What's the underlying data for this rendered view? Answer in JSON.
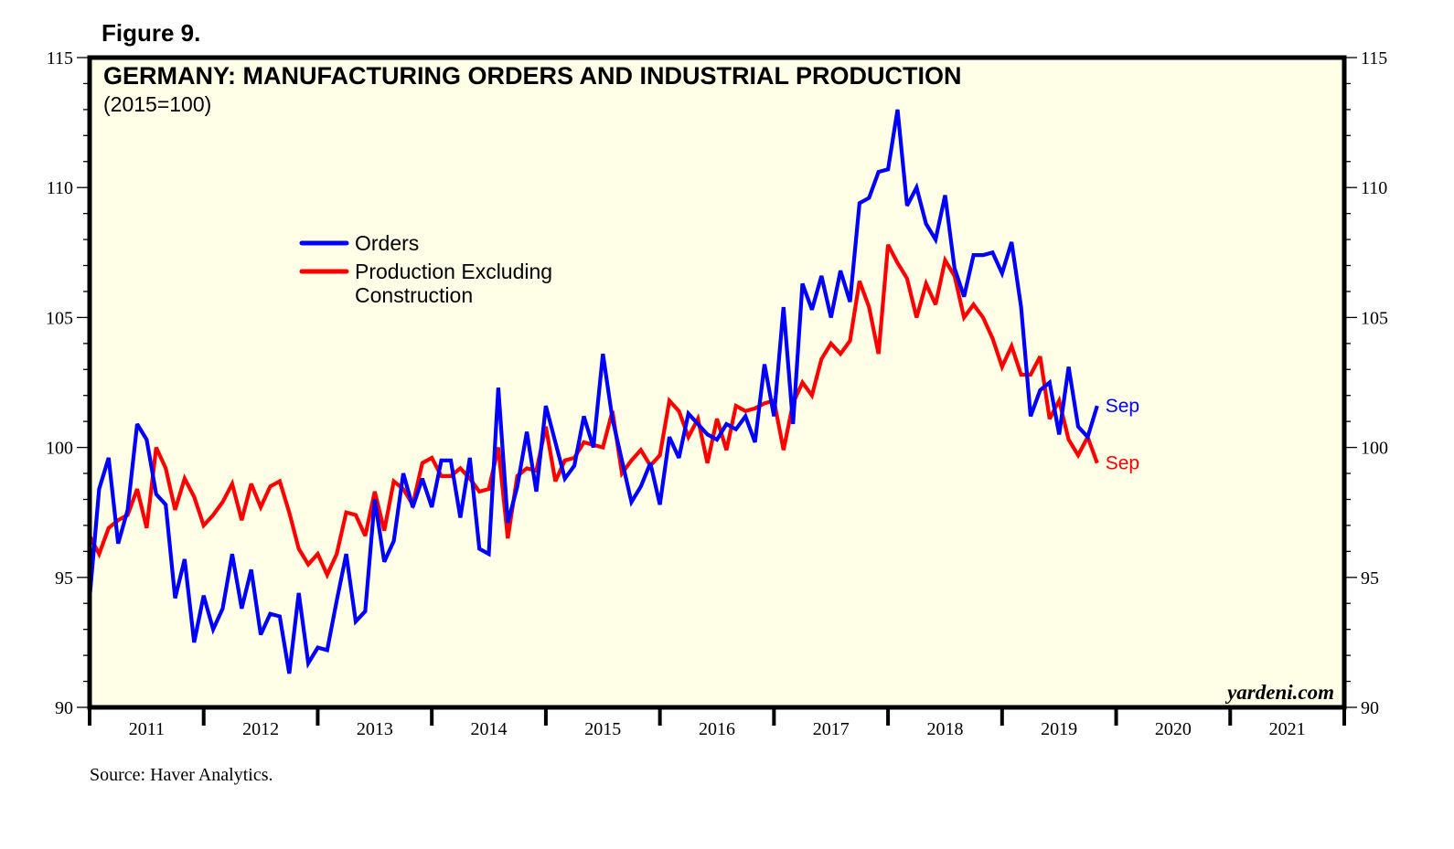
{
  "figure_label": "Figure 9.",
  "source": "Source: Haver Analytics.",
  "watermark": "yardeni.com",
  "colors": {
    "plot_background": "#FFFEE6",
    "frame": "#000000",
    "orders": "#0000FF",
    "production": "#FF0000"
  },
  "chart_data": {
    "type": "line",
    "title": "GERMANY: MANUFACTURING ORDERS AND INDUSTRIAL PRODUCTION",
    "subtitle": "(2015=100)",
    "xlabel": "",
    "ylabel": "",
    "ylim": [
      90,
      115
    ],
    "yticks": [
      90,
      95,
      100,
      105,
      110,
      115
    ],
    "ytick_labels": [
      "90",
      "95",
      "100",
      "105",
      "110",
      "115"
    ],
    "y_minor_step": 1,
    "xlim": [
      "2011-01",
      "2021-12"
    ],
    "xtick_labels": [
      "2011",
      "2012",
      "2013",
      "2014",
      "2015",
      "2016",
      "2017",
      "2018",
      "2019",
      "2020",
      "2021"
    ],
    "grid": false,
    "legend": {
      "placement": "upper-left-center",
      "entries": [
        "Orders",
        "Production Excluding Construction"
      ]
    },
    "x_start": "2011-01",
    "x_frequency": "monthly",
    "series": [
      {
        "name": "Orders",
        "end_label": "Sep",
        "values": [
          94.2,
          98.4,
          99.6,
          96.3,
          97.6,
          100.9,
          100.3,
          98.2,
          97.8,
          94.2,
          95.7,
          92.5,
          94.3,
          93.0,
          93.8,
          95.9,
          93.8,
          95.3,
          92.8,
          93.6,
          93.5,
          91.3,
          94.4,
          91.7,
          92.3,
          92.2,
          94.1,
          95.9,
          93.3,
          93.7,
          98.0,
          95.6,
          96.4,
          99.0,
          97.7,
          98.8,
          97.7,
          99.5,
          99.5,
          97.3,
          99.6,
          96.1,
          95.9,
          102.3,
          97.1,
          98.5,
          100.6,
          98.3,
          101.6,
          100.2,
          98.8,
          99.3,
          101.2,
          100.0,
          103.6,
          101.1,
          99.5,
          97.9,
          98.5,
          99.4,
          97.8,
          100.4,
          99.6,
          101.3,
          100.9,
          100.5,
          100.3,
          100.9,
          100.7,
          101.2,
          100.2,
          103.2,
          101.2,
          105.4,
          100.9,
          106.3,
          105.3,
          106.6,
          105.0,
          106.8,
          105.6,
          109.4,
          109.6,
          110.6,
          110.7,
          113.0,
          109.3,
          110.0,
          108.6,
          108.0,
          109.7,
          106.9,
          105.8,
          107.4,
          107.4,
          107.5,
          106.7,
          107.9,
          105.4,
          101.2,
          102.2,
          102.5,
          100.5,
          103.1,
          100.8,
          100.4,
          101.6
        ]
      },
      {
        "name": "Production Excluding Construction",
        "end_label": "Sep",
        "values": [
          96.6,
          95.9,
          96.9,
          97.2,
          97.4,
          98.4,
          96.9,
          100.0,
          99.2,
          97.6,
          98.8,
          98.1,
          97.0,
          97.4,
          97.9,
          98.6,
          97.2,
          98.6,
          97.7,
          98.5,
          98.7,
          97.5,
          96.1,
          95.5,
          95.9,
          95.1,
          95.9,
          97.5,
          97.4,
          96.6,
          98.3,
          96.8,
          98.7,
          98.4,
          97.8,
          99.4,
          99.6,
          98.9,
          98.9,
          99.2,
          98.8,
          98.3,
          98.4,
          100.0,
          96.5,
          98.9,
          99.2,
          99.1,
          100.8,
          98.7,
          99.5,
          99.6,
          100.2,
          100.1,
          100.0,
          101.4,
          99.0,
          99.5,
          99.9,
          99.3,
          99.7,
          101.8,
          101.4,
          100.4,
          101.1,
          99.4,
          101.1,
          99.9,
          101.6,
          101.4,
          101.5,
          101.7,
          101.8,
          99.9,
          101.7,
          102.5,
          102.0,
          103.4,
          104.0,
          103.6,
          104.1,
          106.4,
          105.4,
          103.6,
          107.8,
          107.1,
          106.5,
          105.0,
          106.3,
          105.5,
          107.2,
          106.6,
          105.0,
          105.5,
          105.0,
          104.2,
          103.1,
          103.9,
          102.8,
          102.8,
          103.5,
          101.1,
          101.8,
          100.3,
          99.7,
          100.4,
          99.4
        ]
      }
    ]
  }
}
